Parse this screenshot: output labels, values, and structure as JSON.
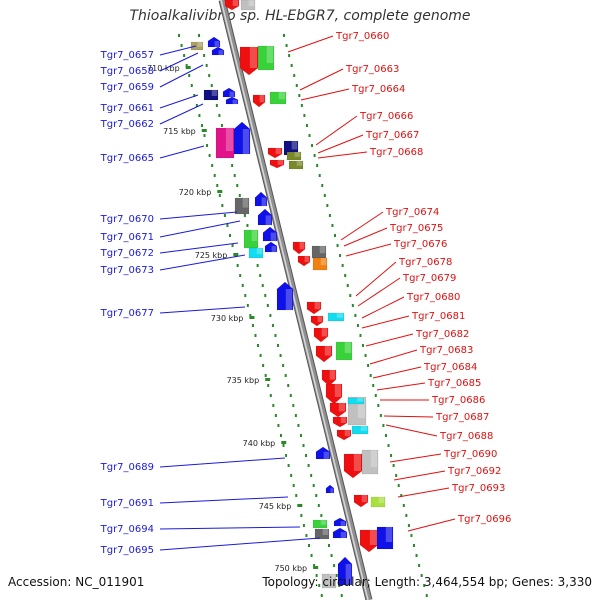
{
  "header": {
    "title": "Thioalkalivibrio sp. HL-EbGR7, complete genome"
  },
  "footer": {
    "accession": "Accession: NC_011901",
    "stats": "Topology: circular; Length: 3,464,554 bp; Genes: 3,330"
  },
  "colors": {
    "left_label": "#1a1adc",
    "right_label": "#e01010",
    "backbone": "#909090",
    "tick": "#2a8a2a"
  },
  "ruler": [
    {
      "text": "710 kbp"
    },
    {
      "text": "715 kbp"
    },
    {
      "text": "720 kbp"
    },
    {
      "text": "725 kbp"
    },
    {
      "text": "730 kbp"
    },
    {
      "text": "735 kbp"
    },
    {
      "text": "740 kbp"
    },
    {
      "text": "745 kbp"
    },
    {
      "text": "750 kbp"
    }
  ],
  "left_labels": [
    "Tgr7_0657",
    "Tgr7_0658",
    "Tgr7_0659",
    "Tgr7_0661",
    "Tgr7_0662",
    "Tgr7_0665",
    "Tgr7_0670",
    "Tgr7_0671",
    "Tgr7_0672",
    "Tgr7_0673",
    "Tgr7_0677",
    "Tgr7_0689",
    "Tgr7_0691",
    "Tgr7_0694",
    "Tgr7_0695"
  ],
  "right_labels": [
    "Tgr7_0660",
    "Tgr7_0663",
    "Tgr7_0664",
    "Tgr7_0666",
    "Tgr7_0667",
    "Tgr7_0668",
    "Tgr7_0674",
    "Tgr7_0675",
    "Tgr7_0676",
    "Tgr7_0678",
    "Tgr7_0679",
    "Tgr7_0680",
    "Tgr7_0681",
    "Tgr7_0682",
    "Tgr7_0683",
    "Tgr7_0684",
    "Tgr7_0685",
    "Tgr7_0686",
    "Tgr7_0687",
    "Tgr7_0688",
    "Tgr7_0690",
    "Tgr7_0692",
    "Tgr7_0693",
    "Tgr7_0696"
  ]
}
